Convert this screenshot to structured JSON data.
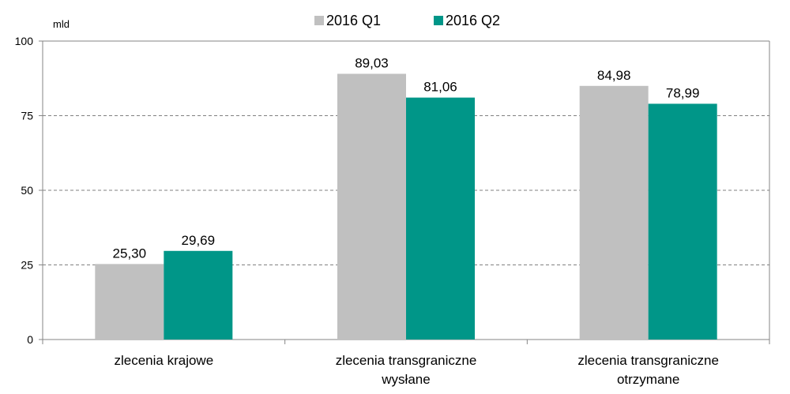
{
  "chart_data": {
    "type": "bar",
    "unit_label": "mld",
    "categories": [
      [
        "zlecenia krajowe"
      ],
      [
        "zlecenia transgraniczne",
        "wysłane"
      ],
      [
        "zlecenia transgraniczne",
        "otrzymane"
      ]
    ],
    "series": [
      {
        "name": "2016 Q1",
        "color": "#c0c0c0",
        "values": [
          25.3,
          89.03,
          84.98
        ],
        "labels": [
          "25,30",
          "89,03",
          "84,98"
        ]
      },
      {
        "name": "2016 Q2",
        "color": "#009688",
        "values": [
          29.69,
          81.06,
          78.99
        ],
        "labels": [
          "29,69",
          "81,06",
          "78,99"
        ]
      }
    ],
    "yticks": [
      0,
      25,
      50,
      75,
      100
    ],
    "ylim": [
      0,
      100
    ],
    "grid": true,
    "legend_position": "top"
  }
}
